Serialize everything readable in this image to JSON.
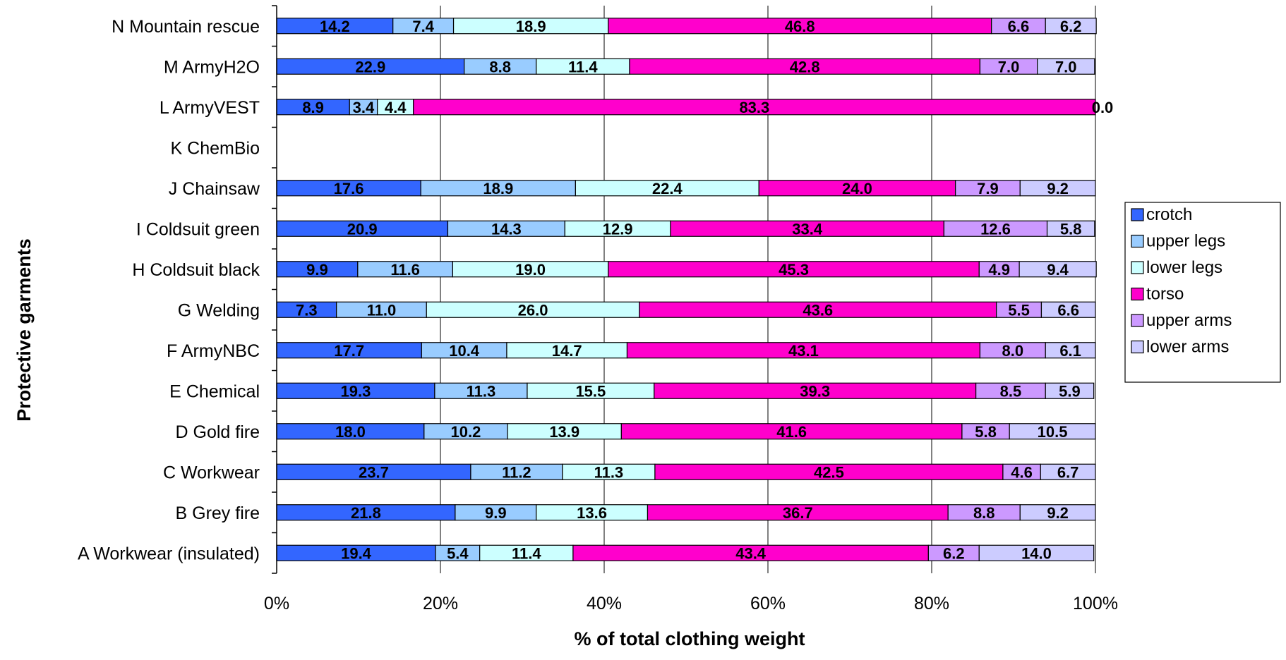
{
  "chart_data": {
    "type": "bar",
    "orientation": "horizontal",
    "stacked": "percent",
    "xlabel": "% of total clothing weight",
    "ylabel": "Protective garments",
    "xlim": [
      0,
      100
    ],
    "x_ticks": [
      "0%",
      "20%",
      "40%",
      "60%",
      "80%",
      "100%"
    ],
    "grid": "vertical major gridlines",
    "legend_position": "right",
    "categories": [
      "N Mountain rescue",
      "M ArmyH2O",
      "L ArmyVEST",
      "K ChemBio",
      "J Chainsaw",
      "I Coldsuit green",
      "H Coldsuit black",
      "G Welding",
      "F ArmyNBC",
      "E Chemical",
      "D Gold fire",
      "C Workwear",
      "B Grey fire",
      "A Workwear (insulated)"
    ],
    "series": [
      {
        "name": "crotch",
        "color": "#3366ff",
        "values": [
          14.2,
          22.9,
          8.9,
          null,
          17.6,
          20.9,
          9.9,
          7.3,
          17.7,
          19.3,
          18.0,
          23.7,
          21.8,
          19.4
        ],
        "labels": [
          "14.2",
          "22.9",
          "8.9",
          "",
          "17.6",
          "20.9",
          "9.9",
          "7.3",
          "17.7",
          "19.3",
          "18.0",
          "23.7",
          "21.8",
          "19.4"
        ]
      },
      {
        "name": "upper legs",
        "color": "#99ccff",
        "values": [
          7.4,
          8.8,
          3.4,
          null,
          18.9,
          14.3,
          11.6,
          11.0,
          10.4,
          11.3,
          10.2,
          11.2,
          9.9,
          5.4
        ],
        "labels": [
          "7.4",
          "8.8",
          "3.4",
          "",
          "18.9",
          "14.3",
          "11.6",
          "11.0",
          "10.4",
          "11.3",
          "10.2",
          "11.2",
          "9.9",
          "5.4"
        ]
      },
      {
        "name": "lower legs",
        "color": "#ccffff",
        "values": [
          18.9,
          11.4,
          4.4,
          null,
          22.4,
          12.9,
          19.0,
          26.0,
          14.7,
          15.5,
          13.9,
          11.3,
          13.6,
          11.4
        ],
        "labels": [
          "18.9",
          "11.4",
          "4.4",
          "",
          "22.4",
          "12.9",
          "19.0",
          "26.0",
          "14.7",
          "15.5",
          "13.9",
          "11.3",
          "13.6",
          "11.4"
        ]
      },
      {
        "name": "torso",
        "color": "#ff00cc",
        "values": [
          46.8,
          42.8,
          83.3,
          null,
          24.0,
          33.4,
          45.3,
          43.6,
          43.1,
          39.3,
          41.6,
          42.5,
          36.7,
          43.4
        ],
        "labels": [
          "46.8",
          "42.8",
          "83.3",
          "",
          "24.0",
          "33.4",
          "45.3",
          "43.6",
          "43.1",
          "39.3",
          "41.6",
          "42.5",
          "36.7",
          "43.4"
        ]
      },
      {
        "name": "upper arms",
        "color": "#cc99ff",
        "values": [
          6.6,
          7.0,
          0.0,
          null,
          7.9,
          12.6,
          4.9,
          5.5,
          8.0,
          8.5,
          5.8,
          4.6,
          8.8,
          6.2
        ],
        "labels": [
          "6.6",
          "7.0",
          "0.0",
          "",
          "7.9",
          "12.6",
          "4.9",
          "5.5",
          "8.0",
          "8.5",
          "5.8",
          "4.6",
          "8.8",
          "6.2"
        ]
      },
      {
        "name": "lower arms",
        "color": "#ccccff",
        "values": [
          6.2,
          7.0,
          0.0,
          null,
          9.2,
          5.8,
          9.4,
          6.6,
          6.1,
          5.9,
          10.5,
          6.7,
          9.2,
          14.0
        ],
        "labels": [
          "6.2",
          "7.0",
          "",
          "",
          "9.2",
          "5.8",
          "9.4",
          "6.6",
          "6.1",
          "5.9",
          "10.5",
          "6.7",
          "9.2",
          "14.0"
        ]
      }
    ]
  }
}
